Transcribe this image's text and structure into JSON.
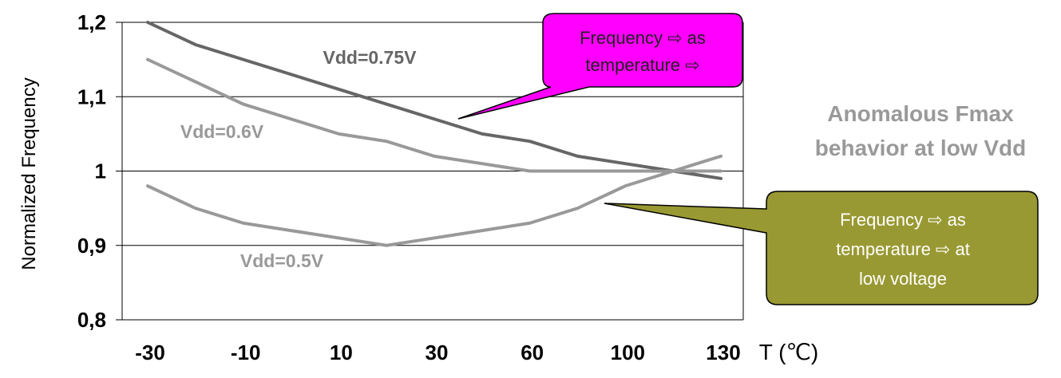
{
  "chart_data": {
    "type": "line",
    "ylabel": "Normalized Frequency",
    "xunit_label": "T (℃)",
    "ylim": [
      0.8,
      1.2
    ],
    "y_ticks": [
      "1,2",
      "1,1",
      "1",
      "0,9",
      "0,8"
    ],
    "y_tick_values": [
      1.2,
      1.1,
      1.0,
      0.9,
      0.8
    ],
    "categories": [
      "-30",
      "",
      "-10",
      "",
      "10",
      "",
      "30",
      "",
      "60",
      "",
      "100",
      "",
      "130"
    ],
    "x_tick_labels": [
      "-30",
      "-10",
      "10",
      "30",
      "60",
      "100",
      "130"
    ],
    "grid": true,
    "series": [
      {
        "name": "Vdd=0.75V",
        "color": "#666666",
        "values": [
          1.2,
          1.17,
          1.15,
          1.13,
          1.11,
          1.09,
          1.07,
          1.05,
          1.04,
          1.02,
          1.01,
          1.0,
          0.99
        ]
      },
      {
        "name": "Vdd=0.6V",
        "color": "#999999",
        "values": [
          1.15,
          1.12,
          1.09,
          1.07,
          1.05,
          1.04,
          1.02,
          1.01,
          1.0,
          1.0,
          1.0,
          1.0,
          1.0
        ]
      },
      {
        "name": "Vdd=0.5V",
        "color": "#999999",
        "values": [
          0.98,
          0.95,
          0.93,
          0.92,
          0.91,
          0.9,
          0.91,
          0.92,
          0.93,
          0.95,
          0.98,
          1.0,
          1.02
        ]
      }
    ],
    "annotations": {
      "anomalous": [
        "Anomalous Fmax",
        "behavior at low Vdd"
      ],
      "callout_high": {
        "lines": [
          "Frequency ⇨ as",
          "temperature ⇨"
        ],
        "color": "#ff00ff"
      },
      "callout_low": {
        "lines": [
          "Frequency ⇨ as",
          "temperature ⇨ at",
          "low voltage"
        ],
        "color": "#999933"
      }
    }
  }
}
